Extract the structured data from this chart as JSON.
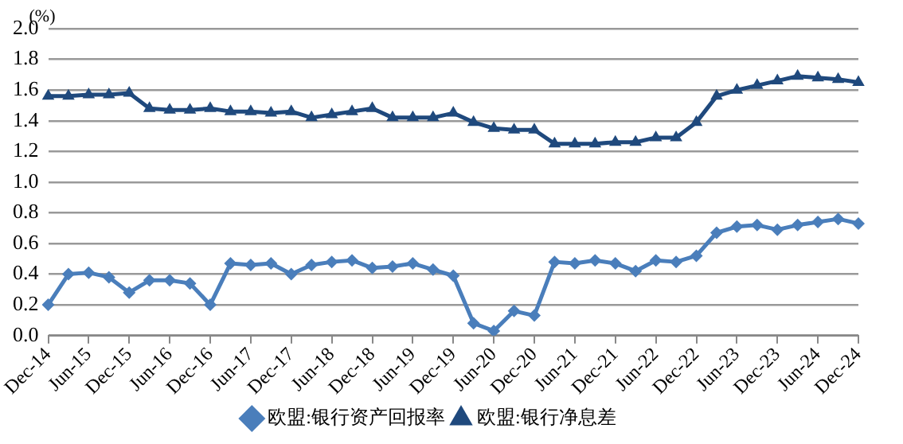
{
  "chart_data": {
    "type": "line",
    "ylabel": "(%)",
    "categories": [
      "Dec-14",
      null,
      "Jun-15",
      null,
      "Dec-15",
      null,
      "Jun-16",
      null,
      "Dec-16",
      null,
      "Jun-17",
      null,
      "Dec-17",
      null,
      "Jun-18",
      null,
      "Dec-18",
      null,
      "Jun-19",
      null,
      "Dec-19",
      null,
      "Jun-20",
      null,
      "Dec-20",
      null,
      "Jun-21",
      null,
      "Dec-21",
      null,
      "Jun-22",
      null,
      "Dec-22",
      null,
      "Jun-23",
      null,
      "Dec-23",
      null,
      "Jun-24",
      null,
      "Dec-24"
    ],
    "series": [
      {
        "name": "欧盟:银行资产回报率",
        "color": "#4a7ebb",
        "marker": "diamond",
        "values": [
          0.2,
          0.4,
          0.41,
          0.38,
          0.28,
          0.36,
          0.36,
          0.34,
          0.2,
          0.47,
          0.46,
          0.47,
          0.4,
          0.46,
          0.48,
          0.49,
          0.44,
          0.45,
          0.47,
          0.43,
          0.39,
          0.08,
          0.03,
          0.16,
          0.13,
          0.48,
          0.47,
          0.49,
          0.47,
          0.42,
          0.49,
          0.48,
          0.52,
          0.67,
          0.71,
          0.72,
          0.69,
          0.72,
          0.74,
          0.76,
          0.73
        ]
      },
      {
        "name": "欧盟:银行净息差",
        "color": "#1f497d",
        "marker": "triangle",
        "values": [
          1.56,
          1.56,
          1.57,
          1.57,
          1.58,
          1.48,
          1.47,
          1.47,
          1.48,
          1.46,
          1.46,
          1.45,
          1.46,
          1.42,
          1.44,
          1.46,
          1.48,
          1.42,
          1.42,
          1.42,
          1.45,
          1.39,
          1.35,
          1.34,
          1.34,
          1.25,
          1.25,
          1.25,
          1.26,
          1.26,
          1.29,
          1.29,
          1.39,
          1.56,
          1.6,
          1.63,
          1.66,
          1.69,
          1.68,
          1.67,
          1.65
        ]
      }
    ],
    "ylim": [
      0,
      2.0
    ],
    "yticks": [
      {
        "value": 0,
        "label": "0.0"
      },
      {
        "value": 0.2,
        "label": "0.2"
      },
      {
        "value": 0.4,
        "label": "0.4"
      },
      {
        "value": 0.6,
        "label": "0.6"
      },
      {
        "value": 0.8,
        "label": "0.8"
      },
      {
        "value": 1.0,
        "label": "1.0"
      },
      {
        "value": 1.2,
        "label": "1.2"
      },
      {
        "value": 1.4,
        "label": "1.4"
      },
      {
        "value": 1.6,
        "label": "1.6"
      },
      {
        "value": 1.8,
        "label": "1.8"
      },
      {
        "value": 2.0,
        "label": "2.0"
      }
    ],
    "grid": "y",
    "legend": "bottom",
    "line_style": "solid"
  }
}
